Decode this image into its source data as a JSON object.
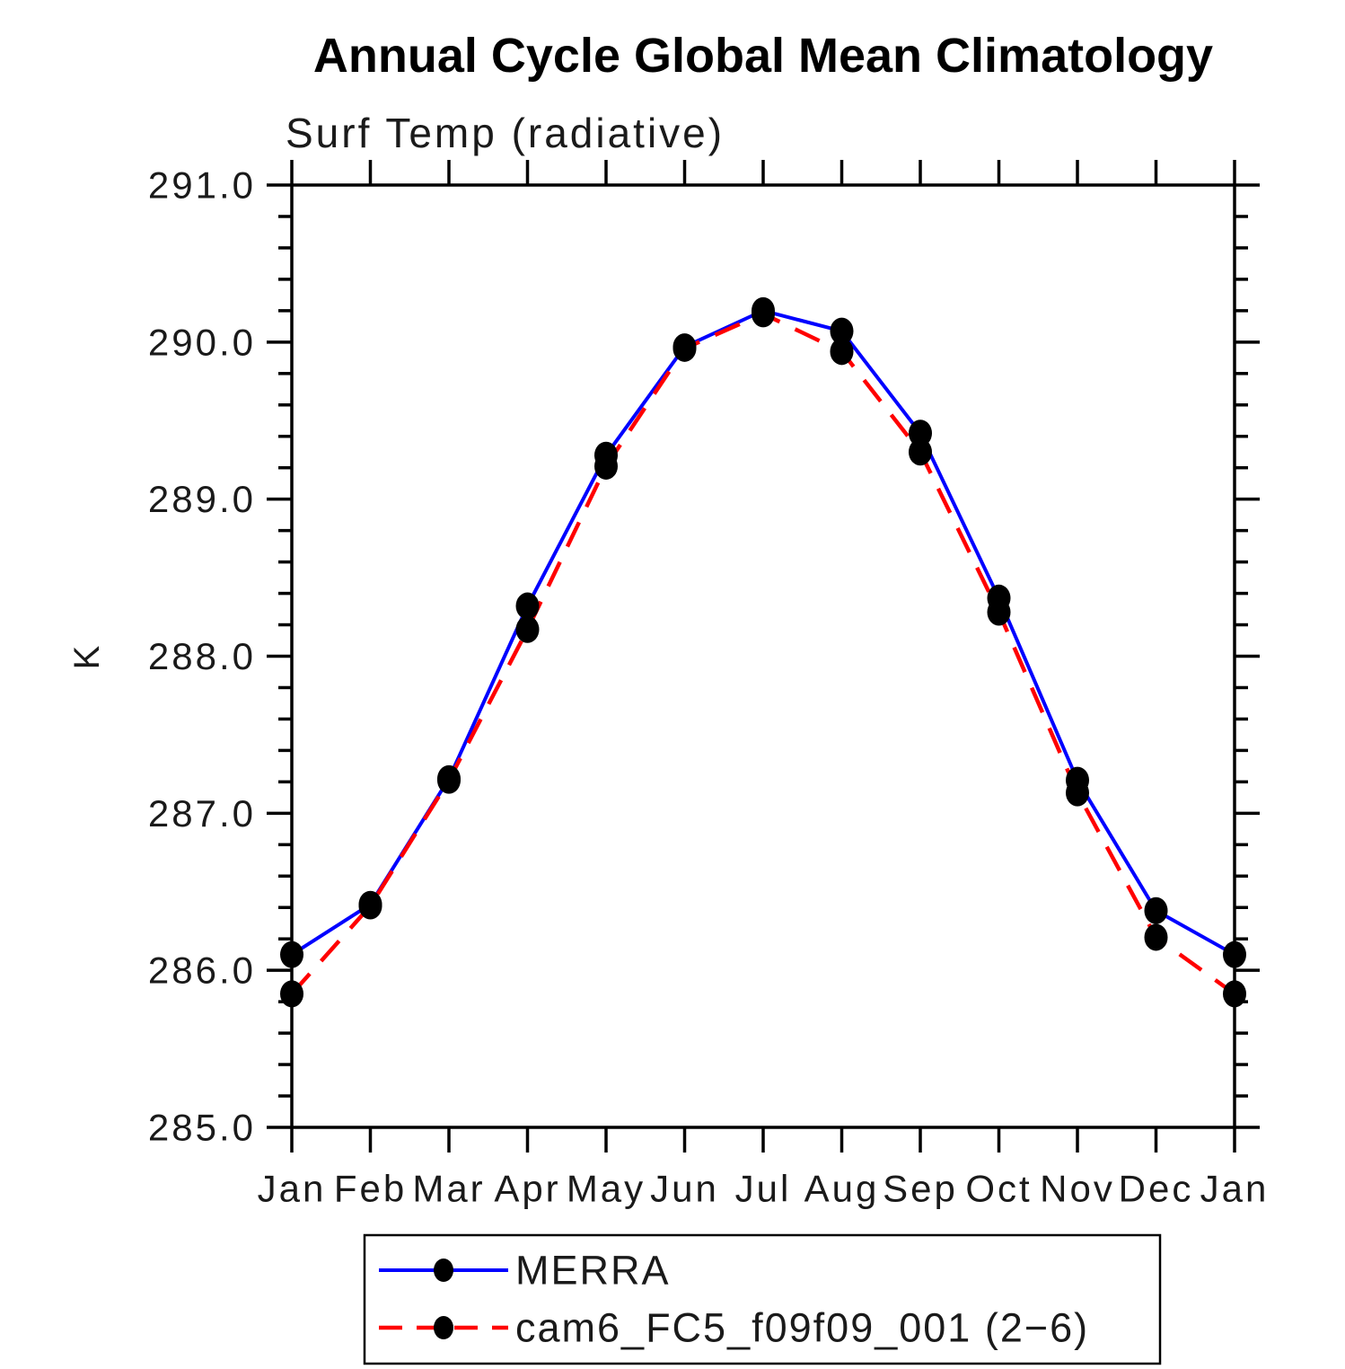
{
  "page": {
    "background_color": "#ffffff",
    "text_color": "#000000"
  },
  "chart_data": {
    "type": "line",
    "title": "Annual Cycle Global Mean Climatology",
    "subtitle": "Surf Temp (radiative)",
    "ylabel": "K",
    "xlabel": "",
    "ylim": [
      285.0,
      291.0
    ],
    "ytick_step": 1.0,
    "yminor_step": 0.2,
    "ytick_labels": [
      "285.0",
      "286.0",
      "287.0",
      "288.0",
      "289.0",
      "290.0",
      "291.0"
    ],
    "categories": [
      "Jan",
      "Feb",
      "Mar",
      "Apr",
      "May",
      "Jun",
      "Jul",
      "Aug",
      "Sep",
      "Oct",
      "Nov",
      "Dec",
      "Jan"
    ],
    "grid": false,
    "marker": "filled-circle",
    "marker_color": "#000000",
    "legend_position": "bottom",
    "series": [
      {
        "name": "MERRA",
        "color": "#0000ff",
        "style": "solid",
        "values": [
          286.1,
          286.42,
          287.22,
          288.32,
          289.28,
          289.97,
          290.2,
          290.07,
          289.42,
          288.37,
          287.21,
          286.38,
          286.1
        ]
      },
      {
        "name": "cam6_FC5_f09f09_001 (2−6)",
        "color": "#ff0000",
        "style": "dashed",
        "values": [
          285.85,
          286.41,
          287.21,
          288.17,
          289.21,
          289.96,
          290.18,
          289.94,
          289.3,
          288.28,
          287.13,
          286.21,
          285.85
        ]
      }
    ]
  }
}
